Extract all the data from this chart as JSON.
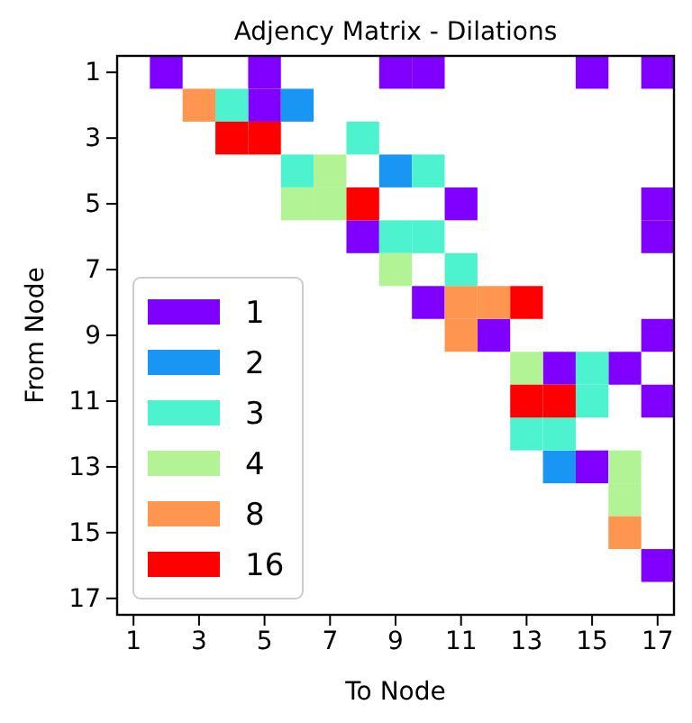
{
  "chart_data": {
    "type": "scatter",
    "title": "Adjency Matrix - Dilations",
    "xlabel": "To Node",
    "ylabel": "From Node",
    "xlim": [
      0.5,
      17.5
    ],
    "ylim": [
      17.5,
      0.5
    ],
    "xticks": [
      1,
      3,
      5,
      7,
      9,
      11,
      13,
      15,
      17
    ],
    "yticks": [
      1,
      3,
      5,
      7,
      9,
      11,
      13,
      15,
      17
    ],
    "marker": "square",
    "legend": "bottom left",
    "series": [
      {
        "name": "1",
        "color": "#8000ff",
        "x": [
          2,
          5,
          9,
          10,
          15,
          17,
          5,
          11,
          17,
          8,
          17,
          10,
          12,
          17,
          14,
          16,
          17,
          15,
          17
        ],
        "values": [
          1,
          1,
          1,
          1,
          1,
          1,
          2,
          5,
          5,
          6,
          6,
          8,
          9,
          9,
          10,
          10,
          11,
          13,
          16
        ]
      },
      {
        "name": "2",
        "color": "#1996f3",
        "x": [
          6,
          9,
          14
        ],
        "values": [
          2,
          4,
          13
        ]
      },
      {
        "name": "3",
        "color": "#4df3ce",
        "x": [
          4,
          8,
          6,
          10,
          9,
          10,
          11,
          15,
          15,
          13,
          14
        ],
        "values": [
          2,
          3,
          4,
          4,
          6,
          6,
          7,
          10,
          11,
          12,
          12
        ]
      },
      {
        "name": "4",
        "color": "#b2f396",
        "x": [
          7,
          6,
          7,
          9,
          13,
          16,
          16
        ],
        "values": [
          4,
          5,
          5,
          7,
          10,
          13,
          14
        ]
      },
      {
        "name": "8",
        "color": "#ff964f",
        "x": [
          3,
          11,
          12,
          11,
          16
        ],
        "values": [
          2,
          8,
          8,
          9,
          15
        ]
      },
      {
        "name": "16",
        "color": "#ff0000",
        "x": [
          4,
          5,
          8,
          13,
          13,
          14
        ],
        "values": [
          3,
          3,
          5,
          8,
          11,
          11
        ]
      }
    ]
  }
}
